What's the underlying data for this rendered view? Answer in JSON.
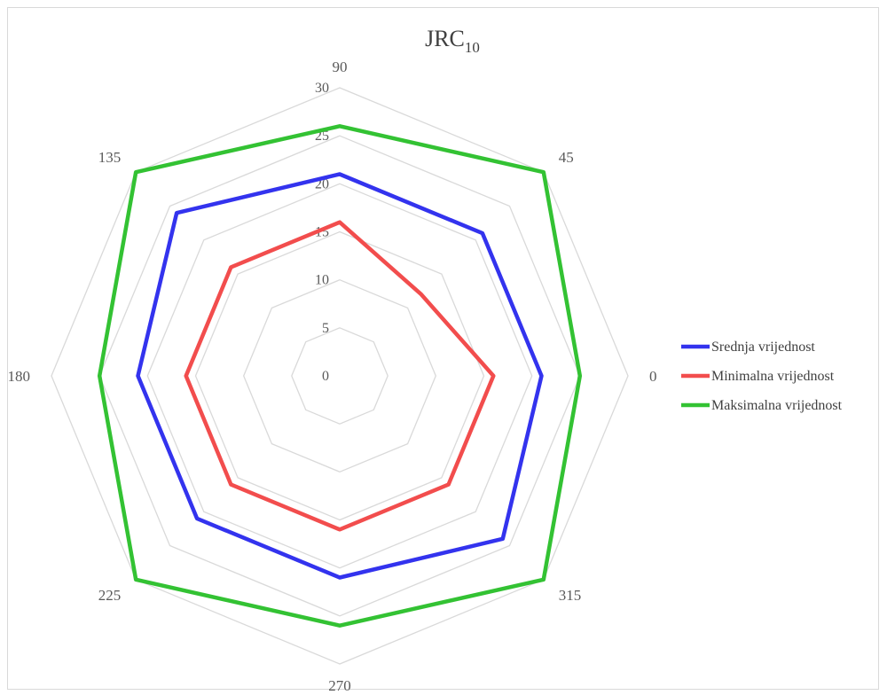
{
  "chart_data": {
    "type": "radar",
    "title": "JRC",
    "title_subscript": "10",
    "categories": [
      "90",
      "45",
      "0",
      "315",
      "270",
      "225",
      "180",
      "135"
    ],
    "radial_ticks": [
      "0",
      "5",
      "10",
      "15",
      "20",
      "25",
      "30"
    ],
    "rmin": 0,
    "rmax": 30,
    "grid": true,
    "legend_position": "right",
    "series": [
      {
        "name": "Srednja vrijednost",
        "color": "#3333ee",
        "values": [
          21,
          21,
          21,
          24,
          21,
          21,
          21,
          24
        ]
      },
      {
        "name": "Minimalna vrijednost",
        "color": "#f24d4d",
        "values": [
          16,
          12,
          16,
          16,
          16,
          16,
          16,
          16
        ]
      },
      {
        "name": "Maksimalna vrijednost",
        "color": "#33c233",
        "values": [
          26,
          30,
          25,
          30,
          26,
          30,
          25,
          30
        ]
      }
    ]
  }
}
